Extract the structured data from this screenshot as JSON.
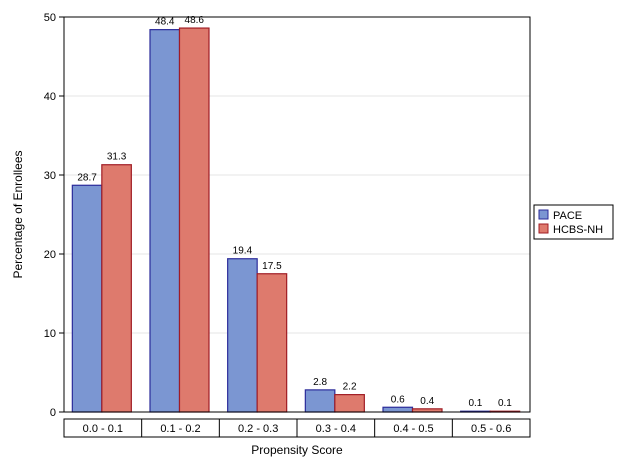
{
  "chart_data": {
    "type": "bar",
    "categories": [
      "0.0 - 0.1",
      "0.1 - 0.2",
      "0.2 - 0.3",
      "0.3 - 0.4",
      "0.4 - 0.5",
      "0.5 - 0.6"
    ],
    "series": [
      {
        "name": "PACE",
        "values": [
          28.7,
          48.4,
          19.4,
          2.8,
          0.6,
          0.1
        ],
        "color": "#7b96d2",
        "stroke": "#2b2b9a"
      },
      {
        "name": "HCBS-NH",
        "values": [
          31.3,
          48.6,
          17.5,
          2.2,
          0.4,
          0.1
        ],
        "color": "#de7a6d",
        "stroke": "#a01c24"
      }
    ],
    "value_labels": [
      [
        "28.7",
        "48.4",
        "19.4",
        "2.8",
        "0.6",
        "0.1"
      ],
      [
        "31.3",
        "48.6",
        "17.5",
        "2.2",
        "0.4",
        "0.1"
      ]
    ],
    "xlabel": "Propensity Score",
    "ylabel": "Percentage of Enrollees",
    "ylim": [
      0,
      50
    ],
    "yticks": [
      0,
      10,
      20,
      30,
      40,
      50
    ],
    "grid": true,
    "legend_position": "right"
  }
}
